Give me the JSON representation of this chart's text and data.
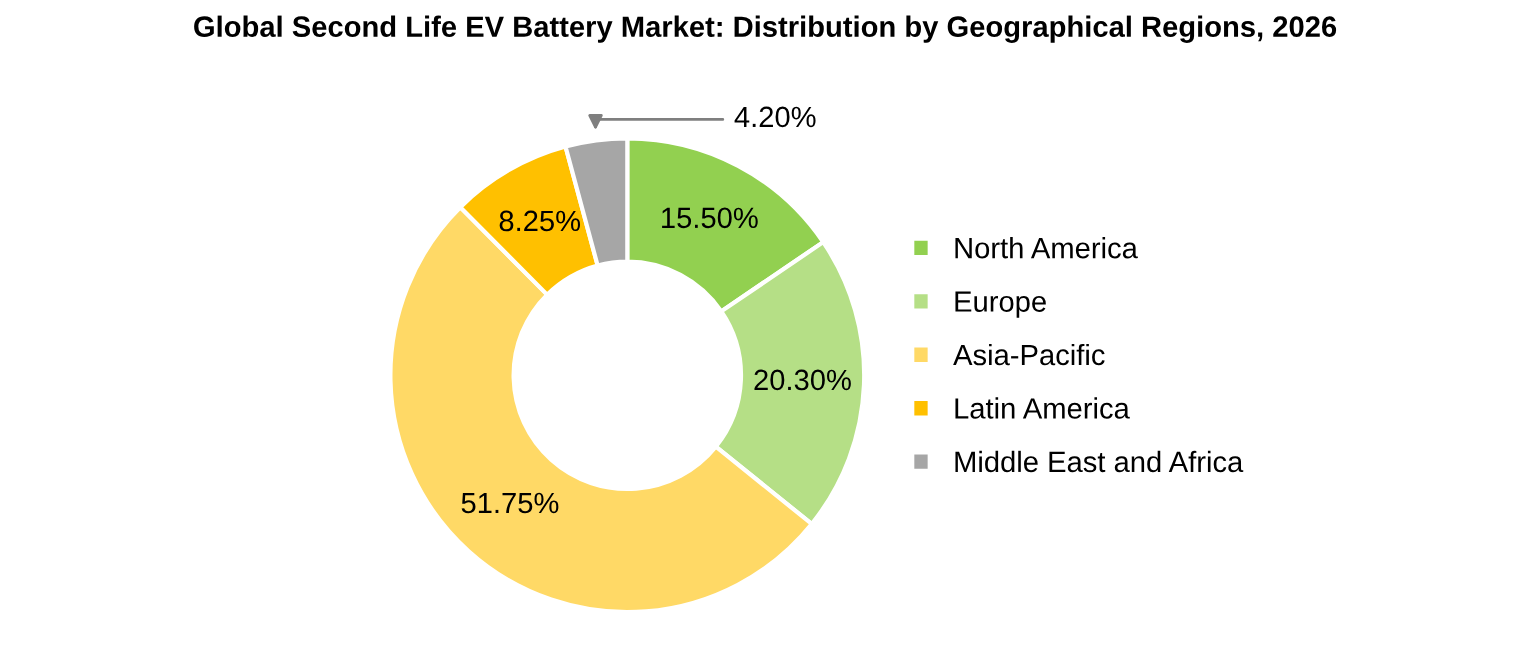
{
  "chart_data": {
    "type": "donut",
    "title": "Global Second Life EV Battery Market: Distribution by Geographical Regions, 2026",
    "categories": [
      "North America",
      "Europe",
      "Asia-Pacific",
      "Latin America",
      "Middle East and Africa"
    ],
    "values": [
      15.5,
      20.3,
      51.75,
      8.25,
      4.2
    ],
    "value_labels": [
      "15.50%",
      "20.30%",
      "51.75%",
      "8.25%",
      "4.20%"
    ],
    "colors": [
      "#92d050",
      "#b5df86",
      "#ffd966",
      "#ffc000",
      "#a6a6a6"
    ],
    "legend": "right"
  }
}
